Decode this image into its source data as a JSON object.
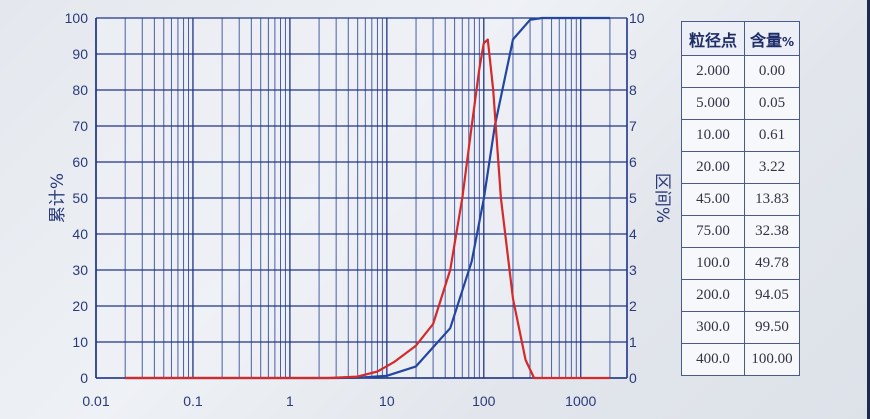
{
  "chart_data": {
    "type": "line",
    "x_scale": "log",
    "xlim": [
      0.01,
      3000
    ],
    "x_ticks": [
      0.01,
      0.1,
      1,
      10,
      100,
      1000
    ],
    "x_tick_labels": [
      "0.01",
      "0.1",
      "1",
      "10",
      "100",
      "1000"
    ],
    "ylabel_left": "累计%",
    "ylabel_right": "区间%",
    "ylim_left": [
      0,
      100
    ],
    "ylim_right": [
      0,
      10
    ],
    "y_ticks_left": [
      "0",
      "10",
      "20",
      "30",
      "40",
      "50",
      "60",
      "70",
      "80",
      "90",
      "100"
    ],
    "y_ticks_right": [
      "0",
      "1",
      "2",
      "3",
      "4",
      "5",
      "6",
      "7",
      "8",
      "9",
      "10"
    ],
    "grid": true,
    "series": [
      {
        "name": "累计%",
        "axis": "left",
        "color": "#2346a0",
        "x": [
          0.02,
          3,
          5,
          10,
          20,
          45,
          75,
          100,
          130,
          200,
          300,
          400,
          2000
        ],
        "y": [
          0,
          0,
          0.05,
          0.61,
          3.22,
          13.83,
          32.38,
          49.78,
          70,
          94.05,
          99.5,
          100,
          100
        ]
      },
      {
        "name": "区间%",
        "axis": "right",
        "color": "#d42a2a",
        "x": [
          0.02,
          2.5,
          5,
          8,
          12,
          20,
          30,
          45,
          60,
          75,
          90,
          100,
          110,
          125,
          150,
          200,
          270,
          330,
          2000
        ],
        "y": [
          0,
          0,
          0.04,
          0.18,
          0.45,
          0.9,
          1.5,
          3.0,
          5.0,
          7.0,
          8.6,
          9.3,
          9.4,
          8.0,
          5.0,
          2.2,
          0.5,
          0,
          0
        ]
      }
    ]
  },
  "table": {
    "header_size": "粒径点",
    "header_content": "含量",
    "header_content_unit": "%",
    "rows": [
      {
        "size": "2.000",
        "content": "0.00"
      },
      {
        "size": "5.000",
        "content": "0.05"
      },
      {
        "size": "10.00",
        "content": "0.61"
      },
      {
        "size": "20.00",
        "content": "3.22"
      },
      {
        "size": "45.00",
        "content": "13.83"
      },
      {
        "size": "75.00",
        "content": "32.38"
      },
      {
        "size": "100.0",
        "content": "49.78"
      },
      {
        "size": "200.0",
        "content": "94.05"
      },
      {
        "size": "300.0",
        "content": "99.50"
      },
      {
        "size": "400.0",
        "content": "100.00"
      }
    ]
  }
}
